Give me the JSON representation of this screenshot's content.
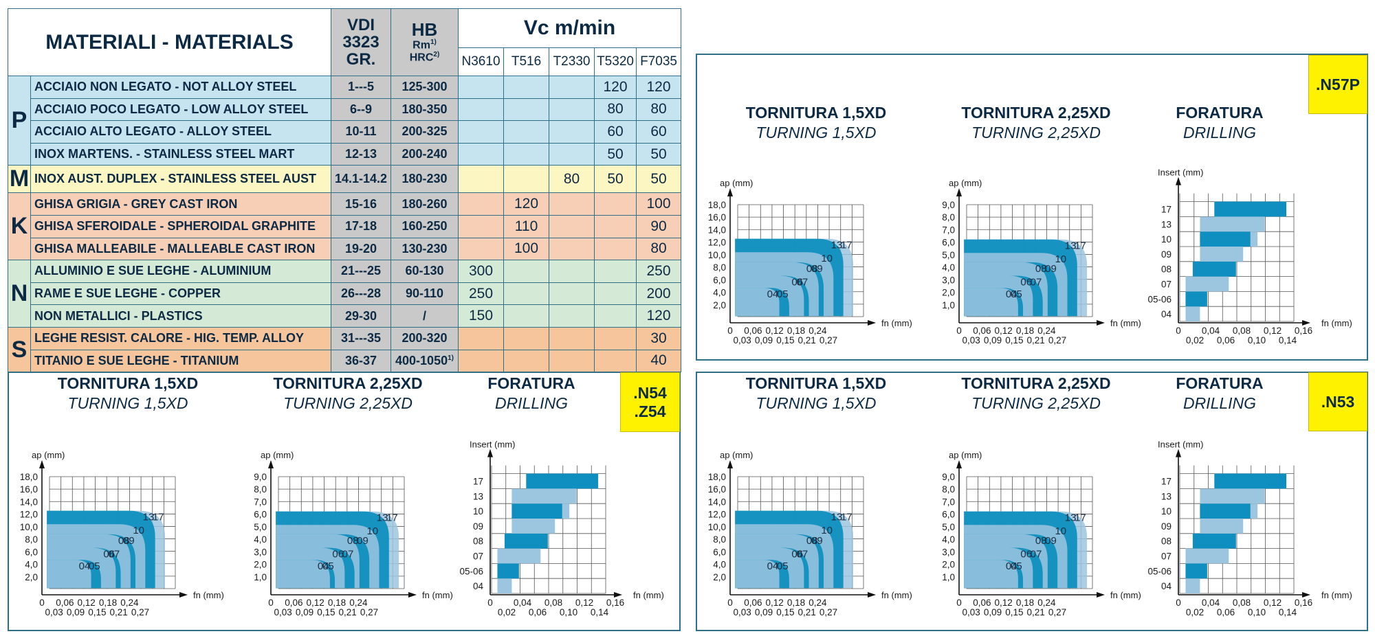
{
  "materials_table": {
    "title": "MATERIALI - MATERIALS",
    "vdi_header": [
      "VDI",
      "3323",
      "GR."
    ],
    "hb_header": "HB",
    "rm_label": "Rm",
    "rm_sup": "1)",
    "hrc_label": "HRC",
    "hrc_sup": "2)",
    "vc_header": "Vc m/min",
    "grade_codes": [
      "N3610",
      "T516",
      "T2330",
      "T5320",
      "F7035"
    ],
    "groups": [
      {
        "letter": "P",
        "color": "#c5e4f0",
        "rows": [
          {
            "name": "ACCIAIO NON LEGATO - NOT ALLOY STEEL",
            "vdi": "1---5",
            "hb": "125-300",
            "values": [
              "",
              "",
              "",
              "120",
              "120"
            ]
          },
          {
            "name": "ACCIAIO POCO LEGATO - LOW ALLOY STEEL",
            "vdi": "6--9",
            "hb": "180-350",
            "values": [
              "",
              "",
              "",
              "80",
              "80"
            ]
          },
          {
            "name": "ACCIAIO ALTO LEGATO - ALLOY STEEL",
            "vdi": "10-11",
            "hb": "200-325",
            "values": [
              "",
              "",
              "",
              "60",
              "60"
            ]
          },
          {
            "name": "INOX MARTENS. - STAINLESS STEEL MART",
            "vdi": "12-13",
            "hb": "200-240",
            "values": [
              "",
              "",
              "",
              "50",
              "50"
            ]
          }
        ]
      },
      {
        "letter": "M",
        "color": "#fbf6c2",
        "rows": [
          {
            "name": "INOX AUST. DUPLEX - STAINLESS STEEL AUST",
            "vdi": "14.1-14.2",
            "hb": "180-230",
            "values": [
              "",
              "",
              "80",
              "50",
              "50"
            ]
          }
        ]
      },
      {
        "letter": "K",
        "color": "#f7cfb6",
        "rows": [
          {
            "name": "GHISA GRIGIA - GREY CAST IRON",
            "vdi": "15-16",
            "hb": "180-260",
            "values": [
              "",
              "120",
              "",
              "",
              "100"
            ]
          },
          {
            "name": "GHISA SFEROIDALE - SPHEROIDAL GRAPHITE",
            "vdi": "17-18",
            "hb": "160-250",
            "values": [
              "",
              "110",
              "",
              "",
              "90"
            ]
          },
          {
            "name": "GHISA MALLEABILE - MALLEABLE CAST IRON",
            "vdi": "19-20",
            "hb": "130-230",
            "values": [
              "",
              "100",
              "",
              "",
              "80"
            ]
          }
        ]
      },
      {
        "letter": "N",
        "color": "#d4ead6",
        "rows": [
          {
            "name": "ALLUMINIO E SUE LEGHE - ALUMINIUM",
            "vdi": "21---25",
            "hb": "60-130",
            "values": [
              "300",
              "",
              "",
              "",
              "250"
            ]
          },
          {
            "name": "RAME E SUE LEGHE - COPPER",
            "vdi": "26---28",
            "hb": "90-110",
            "values": [
              "250",
              "",
              "",
              "",
              "200"
            ]
          },
          {
            "name": "NON METALLICI - PLASTICS",
            "vdi": "29-30",
            "hb": "/",
            "values": [
              "150",
              "",
              "",
              "",
              "120"
            ]
          }
        ]
      },
      {
        "letter": "S",
        "color": "#f6c59c",
        "rows": [
          {
            "name": "LEGHE RESIST. CALORE - HIG. TEMP. ALLOY",
            "vdi": "31---35",
            "hb": "200-320",
            "values": [
              "",
              "",
              "",
              "",
              "30"
            ]
          },
          {
            "name": "TITANIO E SUE LEGHE - TITANIUM",
            "vdi": "36-37",
            "hb": "400-1050",
            "hb_sup": "1)",
            "values": [
              "",
              "",
              "",
              "",
              "40"
            ]
          }
        ]
      }
    ]
  },
  "panels": [
    {
      "id": "n57p",
      "badge": [
        ".N57P"
      ]
    },
    {
      "id": "n54",
      "badge": [
        ".N54",
        ".Z54"
      ]
    },
    {
      "id": "n53",
      "badge": [
        ".N53"
      ]
    }
  ],
  "chart_common": {
    "turning1_title": "TORNITURA 1,5XD",
    "turning1_subtitle": "TURNING 1,5XD",
    "turning2_title": "TORNITURA 2,25XD",
    "turning2_subtitle": "TURNING 2,25XD",
    "drilling_title": "FORATURA",
    "drilling_subtitle": "DRILLING",
    "ap_label": "ap (mm)",
    "fn_label": "fn (mm)",
    "insert_label": "Insert (mm)"
  },
  "chart_data": [
    {
      "type": "area",
      "title": "TORNITURA 1,5XD",
      "subtitle": "TURNING 1,5XD",
      "xlabel": "fn (mm)",
      "ylabel": "ap (mm)",
      "x_ticks_upper": [
        "0,06",
        "0,12",
        "0,18",
        "0,24"
      ],
      "x_ticks_lower": [
        "0,03",
        "0,09",
        "0,15",
        "0,21",
        "0,27"
      ],
      "x_origin": "0",
      "y_ticks": [
        "2,0",
        "4,0",
        "6,0",
        "8,0",
        "10,0",
        "12,0",
        "14,0",
        "16,0",
        "18,0"
      ],
      "xlim": [
        0,
        0.285
      ],
      "ylim": [
        0,
        19
      ],
      "series_labels": [
        "04",
        "05",
        "06",
        "07",
        "08",
        "09",
        "10",
        "13",
        "17"
      ],
      "series": [
        {
          "name": "04",
          "fn": [
            0.01,
            0.1
          ],
          "ap": [
            1.0,
            5.2
          ]
        },
        {
          "name": "05",
          "fn": [
            0.01,
            0.12
          ],
          "ap": [
            1.0,
            5.2
          ]
        },
        {
          "name": "06",
          "fn": [
            0.01,
            0.15
          ],
          "ap": [
            1.0,
            7.0
          ]
        },
        {
          "name": "07",
          "fn": [
            0.01,
            0.16
          ],
          "ap": [
            1.0,
            7.0
          ]
        },
        {
          "name": "08",
          "fn": [
            0.01,
            0.18
          ],
          "ap": [
            1.0,
            9.0
          ]
        },
        {
          "name": "09",
          "fn": [
            0.01,
            0.19
          ],
          "ap": [
            1.0,
            9.0
          ]
        },
        {
          "name": "10",
          "fn": [
            0.01,
            0.21
          ],
          "ap": [
            1.0,
            10.5
          ]
        },
        {
          "name": "13",
          "fn": [
            0.01,
            0.23
          ],
          "ap": [
            1.0,
            12.5
          ]
        },
        {
          "name": "17",
          "fn": [
            0.01,
            0.25
          ],
          "ap": [
            1.0,
            12.5
          ]
        }
      ]
    },
    {
      "type": "area",
      "title": "TORNITURA 2,25XD",
      "subtitle": "TURNING 2,25XD",
      "xlabel": "fn (mm)",
      "ylabel": "ap (mm)",
      "x_ticks_upper": [
        "0,06",
        "0,12",
        "0,18",
        "0,24"
      ],
      "x_ticks_lower": [
        "0,03",
        "0,09",
        "0,15",
        "0,21",
        "0,27"
      ],
      "x_origin": "0",
      "y_ticks": [
        "1,0",
        "2,0",
        "3,0",
        "4,0",
        "5,0",
        "6,0",
        "7,0",
        "8,0",
        "9,0"
      ],
      "xlim": [
        0,
        0.285
      ],
      "ylim": [
        0,
        9.5
      ],
      "series_labels": [
        "04",
        "05",
        "06",
        "07",
        "08",
        "09",
        "10",
        "13",
        "17"
      ],
      "series": [
        {
          "name": "04",
          "fn": [
            0.01,
            0.12
          ],
          "ap": [
            0.5,
            2.6
          ]
        },
        {
          "name": "05",
          "fn": [
            0.01,
            0.13
          ],
          "ap": [
            0.5,
            2.6
          ]
        },
        {
          "name": "06",
          "fn": [
            0.01,
            0.15
          ],
          "ap": [
            0.5,
            3.5
          ]
        },
        {
          "name": "07",
          "fn": [
            0.01,
            0.17
          ],
          "ap": [
            0.5,
            3.5
          ]
        },
        {
          "name": "08",
          "fn": [
            0.01,
            0.18
          ],
          "ap": [
            0.5,
            4.5
          ]
        },
        {
          "name": "09",
          "fn": [
            0.01,
            0.2
          ],
          "ap": [
            0.5,
            4.5
          ]
        },
        {
          "name": "10",
          "fn": [
            0.01,
            0.22
          ],
          "ap": [
            0.5,
            5.2
          ]
        },
        {
          "name": "13",
          "fn": [
            0.01,
            0.24
          ],
          "ap": [
            0.5,
            6.2
          ]
        },
        {
          "name": "17",
          "fn": [
            0.01,
            0.26
          ],
          "ap": [
            0.5,
            6.2
          ]
        }
      ]
    },
    {
      "type": "bar",
      "title": "FORATURA",
      "subtitle": "DRILLING",
      "xlabel": "fn (mm)",
      "ylabel": "Insert (mm)",
      "x_ticks_upper": [
        "0,04",
        "0,08",
        "0,12",
        "0,16"
      ],
      "x_ticks_lower": [
        "0,02",
        "0,06",
        "0,10",
        "0,14"
      ],
      "x_origin": "0",
      "xlim": [
        0,
        0.17
      ],
      "categories": [
        "04",
        "05-06",
        "07",
        "08",
        "09",
        "10",
        "13",
        "17"
      ],
      "dark_ranges": [
        null,
        [
          0.01,
          0.04
        ],
        null,
        [
          0.02,
          0.08
        ],
        null,
        [
          0.03,
          0.1
        ],
        null,
        [
          0.05,
          0.15
        ]
      ],
      "light_ranges": [
        [
          0.01,
          0.03
        ],
        [
          0.01,
          0.04
        ],
        [
          0.01,
          0.07
        ],
        [
          0.02,
          0.08
        ],
        [
          0.03,
          0.09
        ],
        [
          0.03,
          0.11
        ],
        [
          0.03,
          0.12
        ],
        [
          0.05,
          0.15
        ]
      ]
    }
  ]
}
